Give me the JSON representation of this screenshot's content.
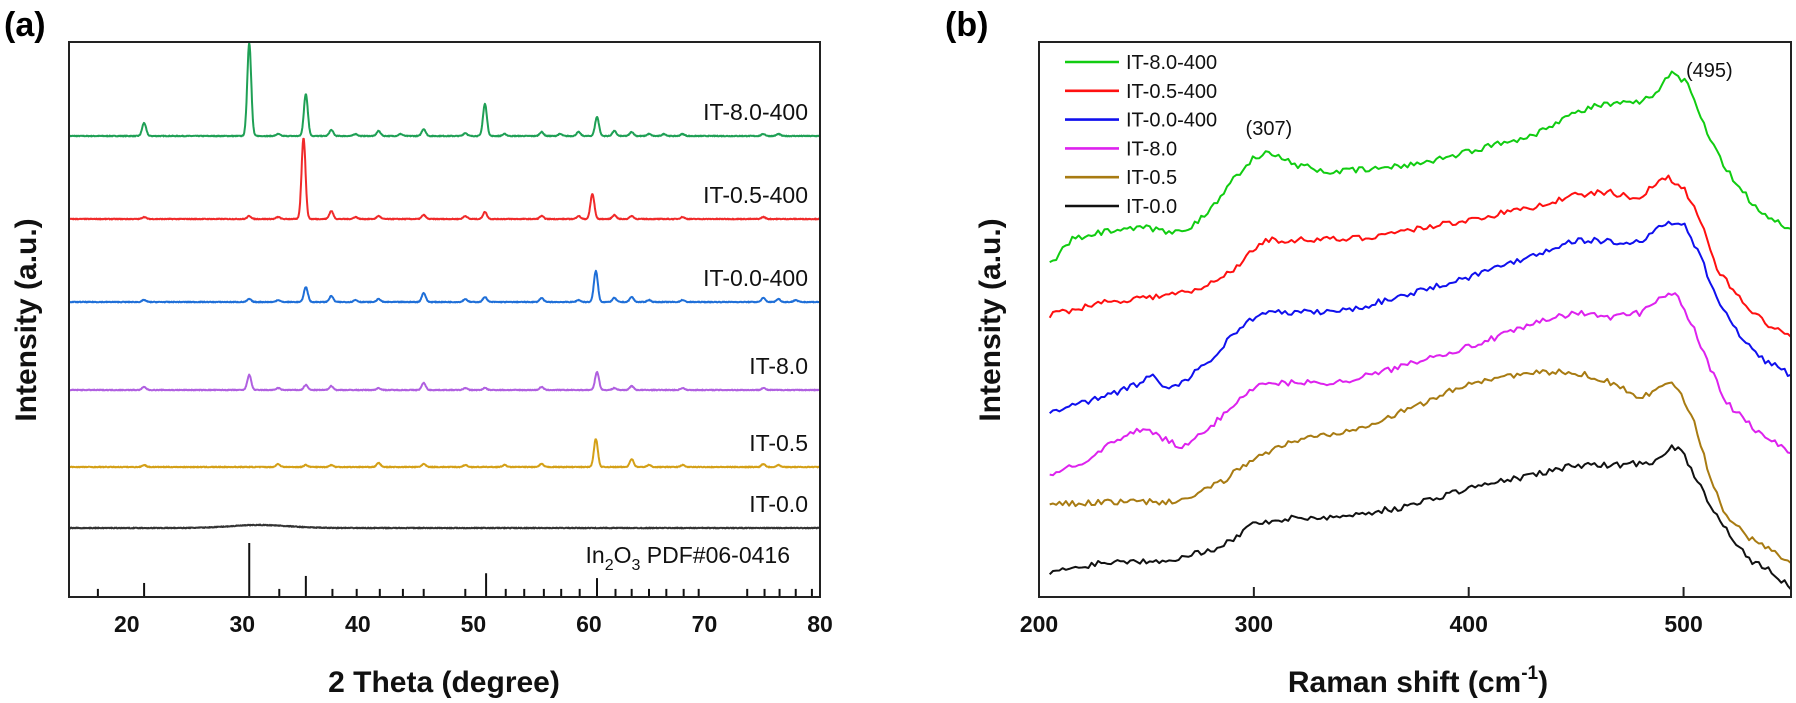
{
  "chart_data": [
    {
      "panel_label": "(a)",
      "type": "line",
      "xlabel": "2 Theta (degree)",
      "ylabel": "Intensity (a.u.)",
      "xlim": [
        15,
        80
      ],
      "ylim": [
        0,
        555
      ],
      "xticks": [
        20,
        30,
        40,
        50,
        60,
        70,
        80
      ],
      "grid": false,
      "stacked_offsets": true,
      "series": [
        {
          "name": "IT-8.0-400",
          "color": "#1fa055",
          "offset": 461,
          "peaks": [
            [
              21.5,
              13
            ],
            [
              30.6,
              93
            ],
            [
              33.1,
              2
            ],
            [
              35.5,
              42
            ],
            [
              37.7,
              6
            ],
            [
              39.8,
              2
            ],
            [
              41.8,
              5
            ],
            [
              43.7,
              2
            ],
            [
              45.7,
              7
            ],
            [
              49.3,
              3
            ],
            [
              51.0,
              32
            ],
            [
              52.7,
              2
            ],
            [
              55.9,
              4
            ],
            [
              57.5,
              2
            ],
            [
              59.1,
              4
            ],
            [
              60.7,
              19
            ],
            [
              62.2,
              5
            ],
            [
              63.7,
              4
            ],
            [
              65.2,
              2
            ],
            [
              66.5,
              2
            ],
            [
              68.1,
              2
            ],
            [
              75.1,
              2
            ],
            [
              76.4,
              2
            ]
          ]
        },
        {
          "name": "IT-0.5-400",
          "color": "#f02a2a",
          "offset": 378,
          "peaks": [
            [
              21.5,
              2
            ],
            [
              30.6,
              3
            ],
            [
              33.1,
              2
            ],
            [
              35.3,
              81
            ],
            [
              37.7,
              8
            ],
            [
              39.8,
              2
            ],
            [
              41.8,
              3
            ],
            [
              45.7,
              4
            ],
            [
              49.3,
              3
            ],
            [
              51.0,
              7
            ],
            [
              55.9,
              3
            ],
            [
              59.1,
              3
            ],
            [
              60.3,
              25
            ],
            [
              62.2,
              4
            ],
            [
              63.7,
              3
            ],
            [
              68.1,
              2
            ],
            [
              75.1,
              2
            ]
          ]
        },
        {
          "name": "IT-0.0-400",
          "color": "#1f6fd8",
          "offset": 295,
          "peaks": [
            [
              21.5,
              2
            ],
            [
              30.6,
              3
            ],
            [
              33.1,
              2
            ],
            [
              35.5,
              15
            ],
            [
              37.7,
              6
            ],
            [
              39.8,
              2
            ],
            [
              41.8,
              3
            ],
            [
              45.7,
              9
            ],
            [
              49.3,
              3
            ],
            [
              51.0,
              5
            ],
            [
              55.9,
              4
            ],
            [
              59.1,
              2
            ],
            [
              60.6,
              31
            ],
            [
              62.2,
              4
            ],
            [
              63.7,
              5
            ],
            [
              65.2,
              2
            ],
            [
              68.1,
              2
            ],
            [
              75.1,
              4
            ],
            [
              76.4,
              3
            ],
            [
              77.9,
              2
            ]
          ]
        },
        {
          "name": "IT-8.0",
          "color": "#b060e0",
          "offset": 207,
          "peaks": [
            [
              21.5,
              3
            ],
            [
              30.6,
              15
            ],
            [
              33.1,
              2
            ],
            [
              35.5,
              5
            ],
            [
              37.7,
              4
            ],
            [
              41.8,
              2
            ],
            [
              45.7,
              7
            ],
            [
              49.3,
              2
            ],
            [
              51.0,
              2
            ],
            [
              55.9,
              3
            ],
            [
              60.7,
              18
            ],
            [
              62.2,
              2
            ],
            [
              63.7,
              4
            ],
            [
              68.1,
              2
            ],
            [
              75.1,
              2
            ]
          ]
        },
        {
          "name": "IT-0.5",
          "color": "#d4a017",
          "offset": 130,
          "peaks": [
            [
              21.5,
              2
            ],
            [
              33.1,
              3
            ],
            [
              35.5,
              2
            ],
            [
              37.7,
              2
            ],
            [
              41.8,
              4
            ],
            [
              45.7,
              3
            ],
            [
              49.3,
              2
            ],
            [
              52.7,
              2
            ],
            [
              55.9,
              3
            ],
            [
              60.6,
              28
            ],
            [
              63.7,
              8
            ],
            [
              65.2,
              2
            ],
            [
              68.1,
              2
            ],
            [
              75.1,
              3
            ],
            [
              76.4,
              2
            ]
          ]
        },
        {
          "name": "IT-0.0",
          "color": "#333333",
          "offset": 69,
          "broad_peaks": [
            [
              31.5,
              3,
              2.5
            ]
          ]
        }
      ],
      "reference": {
        "label_parts": [
          "In",
          "2",
          "O",
          "3",
          " PDF#06-0416"
        ],
        "sticks": [
          [
            17.5,
            15
          ],
          [
            21.5,
            26
          ],
          [
            30.6,
            100
          ],
          [
            33.2,
            15
          ],
          [
            35.5,
            39
          ],
          [
            37.8,
            15
          ],
          [
            39.9,
            15
          ],
          [
            41.9,
            15
          ],
          [
            43.9,
            15
          ],
          [
            45.7,
            15
          ],
          [
            49.3,
            15
          ],
          [
            51.1,
            44
          ],
          [
            52.8,
            15
          ],
          [
            54.4,
            15
          ],
          [
            56.1,
            15
          ],
          [
            57.6,
            15
          ],
          [
            59.2,
            15
          ],
          [
            60.7,
            35
          ],
          [
            62.3,
            15
          ],
          [
            63.7,
            15
          ],
          [
            65.2,
            15
          ],
          [
            66.7,
            15
          ],
          [
            68.2,
            15
          ],
          [
            69.5,
            15
          ],
          [
            73.7,
            15
          ],
          [
            75.2,
            15
          ],
          [
            76.5,
            15
          ],
          [
            77.9,
            15
          ],
          [
            79.3,
            15
          ]
        ]
      }
    },
    {
      "panel_label": "(b)",
      "type": "line",
      "xlabel_main": "Raman shift (cm",
      "xlabel_sup": "-1",
      "xlabel_end": ")",
      "ylabel": "Intensity (a.u.)",
      "xlim": [
        200,
        550
      ],
      "ylim": [
        0,
        555
      ],
      "xticks": [
        200,
        300,
        400,
        500
      ],
      "grid": false,
      "legend_position": "top-left",
      "annotations": [
        {
          "text": "(307)",
          "x": 307,
          "y": 462
        },
        {
          "text": "(495)",
          "x": 512,
          "y": 520
        }
      ],
      "series": [
        {
          "name": "IT-8.0-400",
          "color": "#11cc11",
          "points": [
            [
              205,
              332
            ],
            [
              215,
              357
            ],
            [
              230,
              365
            ],
            [
              250,
              369
            ],
            [
              262,
              364
            ],
            [
              272,
              372
            ],
            [
              280,
              387
            ],
            [
              290,
              417
            ],
            [
              300,
              440
            ],
            [
              307,
              444
            ],
            [
              320,
              432
            ],
            [
              335,
              425
            ],
            [
              350,
              427
            ],
            [
              370,
              431
            ],
            [
              390,
              440
            ],
            [
              410,
              451
            ],
            [
              430,
              462
            ],
            [
              445,
              480
            ],
            [
              460,
              492
            ],
            [
              480,
              494
            ],
            [
              486,
              503
            ],
            [
              495,
              525
            ],
            [
              502,
              513
            ],
            [
              510,
              470
            ],
            [
              520,
              427
            ],
            [
              535,
              385
            ],
            [
              550,
              367
            ]
          ]
        },
        {
          "name": "IT-0.5-400",
          "color": "#ff1010",
          "points": [
            [
              205,
              282
            ],
            [
              230,
              295
            ],
            [
              260,
              302
            ],
            [
              275,
              307
            ],
            [
              290,
              327
            ],
            [
              305,
              357
            ],
            [
              330,
              357
            ],
            [
              350,
              359
            ],
            [
              400,
              377
            ],
            [
              430,
              390
            ],
            [
              450,
              402
            ],
            [
              465,
              405
            ],
            [
              480,
              398
            ],
            [
              485,
              410
            ],
            [
              492,
              421
            ],
            [
              500,
              410
            ],
            [
              508,
              375
            ],
            [
              515,
              330
            ],
            [
              530,
              287
            ],
            [
              540,
              272
            ],
            [
              550,
              260
            ]
          ]
        },
        {
          "name": "IT-0.0-400",
          "color": "#1010ee",
          "points": [
            [
              205,
              184
            ],
            [
              230,
              200
            ],
            [
              245,
              212
            ],
            [
              253,
              222
            ],
            [
              258,
              210
            ],
            [
              265,
              212
            ],
            [
              280,
              237
            ],
            [
              290,
              262
            ],
            [
              300,
              280
            ],
            [
              305,
              284
            ],
            [
              330,
              285
            ],
            [
              345,
              287
            ],
            [
              370,
              302
            ],
            [
              400,
              320
            ],
            [
              430,
              342
            ],
            [
              450,
              357
            ],
            [
              465,
              356
            ],
            [
              475,
              352
            ],
            [
              485,
              362
            ],
            [
              492,
              375
            ],
            [
              500,
              373
            ],
            [
              508,
              340
            ],
            [
              515,
              300
            ],
            [
              525,
              265
            ],
            [
              535,
              240
            ],
            [
              550,
              222
            ]
          ]
        },
        {
          "name": "IT-8.0",
          "color": "#dd22ee",
          "points": [
            [
              205,
              122
            ],
            [
              220,
              135
            ],
            [
              235,
              155
            ],
            [
              249,
              169
            ],
            [
              258,
              158
            ],
            [
              267,
              149
            ],
            [
              280,
              170
            ],
            [
              290,
              192
            ],
            [
              300,
              210
            ],
            [
              310,
              214
            ],
            [
              340,
              215
            ],
            [
              360,
              225
            ],
            [
              380,
              239
            ],
            [
              400,
              250
            ],
            [
              420,
              265
            ],
            [
              440,
              280
            ],
            [
              450,
              284
            ],
            [
              465,
              280
            ],
            [
              480,
              284
            ],
            [
              490,
              302
            ],
            [
              497,
              302
            ],
            [
              505,
              267
            ],
            [
              510,
              240
            ],
            [
              520,
              194
            ],
            [
              535,
              164
            ],
            [
              550,
              144
            ]
          ]
        },
        {
          "name": "IT-0.5",
          "color": "#a87b12",
          "points": [
            [
              205,
              92
            ],
            [
              230,
              95
            ],
            [
              260,
              95
            ],
            [
              270,
              99
            ],
            [
              285,
              115
            ],
            [
              300,
              139
            ],
            [
              320,
              157
            ],
            [
              340,
              165
            ],
            [
              360,
              177
            ],
            [
              380,
              195
            ],
            [
              400,
              214
            ],
            [
              420,
              222
            ],
            [
              440,
              225
            ],
            [
              455,
              222
            ],
            [
              470,
              212
            ],
            [
              480,
              197
            ],
            [
              490,
              214
            ],
            [
              497,
              211
            ],
            [
              505,
              177
            ],
            [
              512,
              120
            ],
            [
              520,
              80
            ],
            [
              530,
              60
            ],
            [
              550,
              34
            ]
          ]
        },
        {
          "name": "IT-0.0",
          "color": "#111111",
          "points": [
            [
              205,
              24
            ],
            [
              230,
              35
            ],
            [
              260,
              37
            ],
            [
              280,
              47
            ],
            [
              290,
              57
            ],
            [
              300,
              74
            ],
            [
              320,
              79
            ],
            [
              340,
              80
            ],
            [
              370,
              90
            ],
            [
              400,
              109
            ],
            [
              430,
              122
            ],
            [
              450,
              132
            ],
            [
              470,
              132
            ],
            [
              485,
              135
            ],
            [
              495,
              150
            ],
            [
              500,
              145
            ],
            [
              505,
              120
            ],
            [
              515,
              84
            ],
            [
              530,
              37
            ],
            [
              540,
              27
            ],
            [
              550,
              9
            ]
          ]
        }
      ]
    }
  ]
}
